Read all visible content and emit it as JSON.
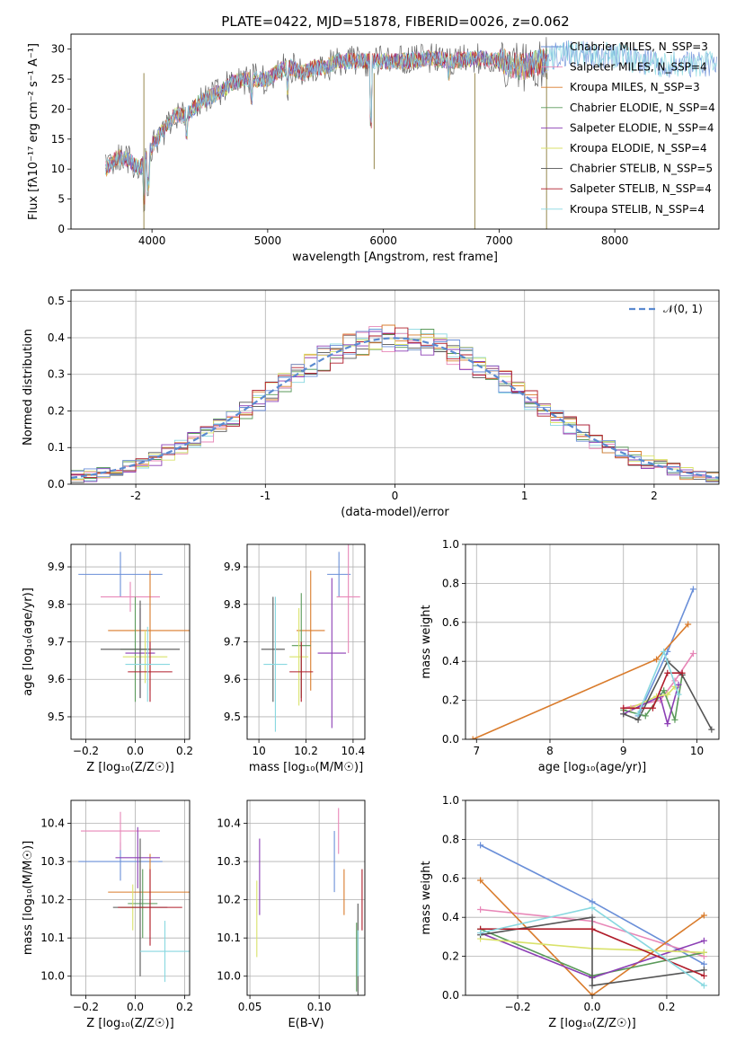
{
  "title": "PLATE=0422, MJD=51878, FIBERID=0026, z=0.062",
  "colors": [
    "#6a8fd8",
    "#e887b8",
    "#d97b2b",
    "#5a9a5a",
    "#8c3fb5",
    "#d9e26a",
    "#555555",
    "#b01c2a",
    "#88d8e0"
  ],
  "chart_data": [
    {
      "type": "line",
      "name": "spectrum",
      "xlabel": "wavelength [Angstrom, rest frame]",
      "ylabel": "Flux [fλ10⁻¹⁷ erg cm⁻² s⁻¹ A⁻¹]",
      "xlim": [
        3300,
        8900
      ],
      "ylim": [
        0,
        32.5
      ],
      "xticks": [
        4000,
        5000,
        6000,
        7000,
        8000
      ],
      "yticks": [
        0,
        5,
        10,
        15,
        20,
        25,
        30
      ],
      "grid": false,
      "legend_position": "right",
      "series": [
        {
          "name": "Chabrier MILES, N_SSP=3"
        },
        {
          "name": "Salpeter MILES, N_SSP=4"
        },
        {
          "name": "Kroupa MILES, N_SSP=3"
        },
        {
          "name": "Chabrier ELODIE, N_SSP=4"
        },
        {
          "name": "Salpeter ELODIE, N_SSP=4"
        },
        {
          "name": "Kroupa ELODIE, N_SSP=4"
        },
        {
          "name": "Chabrier STELIB, N_SSP=5"
        },
        {
          "name": "Salpeter STELIB, N_SSP=4"
        },
        {
          "name": "Kroupa STELIB, N_SSP=4"
        }
      ],
      "continuum": {
        "x": [
          3600,
          3700,
          3800,
          3900,
          4000,
          4100,
          4200,
          4300,
          4400,
          4500,
          4600,
          4700,
          4800,
          4900,
          5000,
          5100,
          5200,
          5300,
          5400,
          5500,
          5600,
          5800,
          6000,
          6200,
          6400,
          6600,
          6800,
          7000,
          7200,
          7400,
          7500,
          7600,
          7800,
          8000,
          8200,
          8400,
          8600,
          8800
        ],
        "y": [
          10,
          12,
          11.5,
          10,
          14,
          16.5,
          19,
          19,
          21,
          22,
          23,
          24.5,
          25,
          25,
          25,
          26.5,
          27,
          26,
          27,
          27,
          28,
          28,
          28,
          28,
          28.5,
          28,
          28.5,
          28,
          27,
          28,
          29,
          29.5,
          29,
          29,
          28,
          27.5,
          27.5,
          27.5
        ]
      }
    },
    {
      "type": "step",
      "name": "residual-histogram",
      "xlabel": "(data-model)/error",
      "ylabel": "Normed distribution",
      "xlim": [
        -2.5,
        2.5
      ],
      "ylim": [
        0,
        0.53
      ],
      "xticks": [
        -2,
        -1,
        0,
        1,
        2
      ],
      "yticks": [
        0.0,
        0.1,
        0.2,
        0.3,
        0.4,
        0.5
      ],
      "grid": true,
      "legend_position": "top-right",
      "gaussian_label": "𝒩(0, 1)",
      "bin_width": 0.1
    },
    {
      "type": "errorbar",
      "name": "age-vs-Z",
      "xlabel": "Z [log₁₀(Z/Z☉)]",
      "ylabel": "age  [log₁₀(age/yr)]",
      "xlim": [
        -0.26,
        0.22
      ],
      "ylim": [
        9.44,
        9.96
      ],
      "xticks": [
        -0.2,
        0.0,
        0.2
      ],
      "xticklabels": [
        "−0.2",
        "0.0",
        "0.2"
      ],
      "yticks": [
        9.5,
        9.6,
        9.7,
        9.8,
        9.9
      ],
      "grid": true,
      "points": [
        {
          "x": -0.06,
          "xerr": 0.17,
          "y": 9.88,
          "yerr": 0.06
        },
        {
          "x": -0.02,
          "xerr": 0.12,
          "y": 9.82,
          "yerr": 0.04
        },
        {
          "x": 0.06,
          "xerr": 0.17,
          "y": 9.73,
          "yerr": 0.16
        },
        {
          "x": 0.0,
          "xerr": 0.06,
          "y": 9.68,
          "yerr": 0.14
        },
        {
          "x": 0.02,
          "xerr": 0.06,
          "y": 9.67,
          "yerr": 0.12
        },
        {
          "x": 0.04,
          "xerr": 0.09,
          "y": 9.66,
          "yerr": 0.07
        },
        {
          "x": 0.02,
          "xerr": 0.16,
          "y": 9.68,
          "yerr": 0.13
        },
        {
          "x": 0.06,
          "xerr": 0.09,
          "y": 9.62,
          "yerr": 0.08
        },
        {
          "x": 0.05,
          "xerr": 0.09,
          "y": 9.64,
          "yerr": 0.1
        }
      ]
    },
    {
      "type": "errorbar",
      "name": "age-vs-mass",
      "xlabel": "mass [log₁₀(M/M☉)]",
      "ylabel": "",
      "xlim": [
        9.95,
        10.45
      ],
      "ylim": [
        9.44,
        9.96
      ],
      "xticks": [
        10.0,
        10.2,
        10.4
      ],
      "yticks": [
        9.5,
        9.6,
        9.7,
        9.8,
        9.9
      ],
      "grid": true,
      "points": [
        {
          "x": 10.34,
          "xerr": 0.05,
          "y": 9.88,
          "yerr": 0.06
        },
        {
          "x": 10.38,
          "xerr": 0.05,
          "y": 9.82,
          "yerr": 0.15
        },
        {
          "x": 10.22,
          "xerr": 0.06,
          "y": 9.73,
          "yerr": 0.16
        },
        {
          "x": 10.18,
          "xerr": 0.04,
          "y": 9.69,
          "yerr": 0.14
        },
        {
          "x": 10.31,
          "xerr": 0.06,
          "y": 9.67,
          "yerr": 0.2
        },
        {
          "x": 10.17,
          "xerr": 0.04,
          "y": 9.66,
          "yerr": 0.13
        },
        {
          "x": 10.06,
          "xerr": 0.05,
          "y": 9.68,
          "yerr": 0.14
        },
        {
          "x": 10.18,
          "xerr": 0.05,
          "y": 9.62,
          "yerr": 0.08
        },
        {
          "x": 10.07,
          "xerr": 0.05,
          "y": 9.64,
          "yerr": 0.18
        }
      ]
    },
    {
      "type": "line",
      "name": "mass-weight-vs-age",
      "xlabel": "age  [log₁₀(age/yr)]",
      "ylabel": "mass weight",
      "xlim": [
        6.85,
        10.3
      ],
      "ylim": [
        0,
        1
      ],
      "xticks": [
        7,
        8,
        9,
        10
      ],
      "yticks": [
        0.0,
        0.2,
        0.4,
        0.6,
        0.8,
        1.0
      ],
      "grid": true,
      "series": [
        {
          "x": [
            9.2,
            9.6,
            9.95
          ],
          "y": [
            0.12,
            0.45,
            0.77
          ]
        },
        {
          "x": [
            9.0,
            9.5,
            9.7,
            9.95
          ],
          "y": [
            0.16,
            0.2,
            0.3,
            0.44
          ]
        },
        {
          "x": [
            6.95,
            9.45,
            9.88
          ],
          "y": [
            0.0,
            0.41,
            0.59
          ]
        },
        {
          "x": [
            9.0,
            9.3,
            9.55,
            9.7,
            9.8
          ],
          "y": [
            0.15,
            0.12,
            0.25,
            0.1,
            0.33
          ]
        },
        {
          "x": [
            9.0,
            9.5,
            9.6,
            9.75
          ],
          "y": [
            0.13,
            0.22,
            0.08,
            0.28
          ]
        },
        {
          "x": [
            9.1,
            9.45,
            9.6,
            9.7
          ],
          "y": [
            0.16,
            0.22,
            0.23,
            0.27
          ]
        },
        {
          "x": [
            9.0,
            9.2,
            9.6,
            9.8,
            10.2
          ],
          "y": [
            0.13,
            0.1,
            0.4,
            0.33,
            0.05
          ]
        },
        {
          "x": [
            9.0,
            9.4,
            9.6,
            9.8
          ],
          "y": [
            0.16,
            0.16,
            0.34,
            0.34
          ]
        },
        {
          "x": [
            9.2,
            9.55,
            9.75
          ],
          "y": [
            0.13,
            0.45,
            0.23
          ]
        }
      ]
    },
    {
      "type": "errorbar",
      "name": "mass-vs-Z",
      "xlabel": "Z [log₁₀(Z/Z☉)]",
      "ylabel": "mass [log₁₀(M/M☉)]",
      "xlim": [
        -0.26,
        0.22
      ],
      "ylim": [
        9.95,
        10.46
      ],
      "xticks": [
        -0.2,
        0.0,
        0.2
      ],
      "xticklabels": [
        "−0.2",
        "0.0",
        "0.2"
      ],
      "yticks": [
        10.0,
        10.1,
        10.2,
        10.3,
        10.4
      ],
      "grid": true,
      "points": [
        {
          "x": -0.06,
          "xerr": 0.17,
          "y": 10.3,
          "yerr": 0.05
        },
        {
          "x": -0.06,
          "xerr": 0.16,
          "y": 10.38,
          "yerr": 0.05
        },
        {
          "x": 0.06,
          "xerr": 0.17,
          "y": 10.22,
          "yerr": 0.1
        },
        {
          "x": 0.03,
          "xerr": 0.06,
          "y": 10.19,
          "yerr": 0.09
        },
        {
          "x": 0.01,
          "xerr": 0.09,
          "y": 10.31,
          "yerr": 0.08
        },
        {
          "x": -0.01,
          "xerr": 0.05,
          "y": 10.18,
          "yerr": 0.06
        },
        {
          "x": 0.02,
          "xerr": 0.11,
          "y": 10.18,
          "yerr": 0.18
        },
        {
          "x": 0.06,
          "xerr": 0.13,
          "y": 10.18,
          "yerr": 0.1
        },
        {
          "x": 0.12,
          "xerr": 0.1,
          "y": 10.065,
          "yerr": 0.08
        }
      ]
    },
    {
      "type": "errorbar",
      "name": "mass-vs-ebv",
      "xlabel": "E(B-V)",
      "ylabel": "",
      "xlim": [
        0.048,
        0.133
      ],
      "ylim": [
        9.95,
        10.46
      ],
      "xticks": [
        0.05,
        0.1
      ],
      "xticklabels": [
        "0.05",
        "0.10"
      ],
      "yticks": [
        10.0,
        10.1,
        10.2,
        10.3,
        10.4
      ],
      "grid": true,
      "points": [
        {
          "x": 0.111,
          "xerr": 0,
          "y": 10.3,
          "yerr": 0.08
        },
        {
          "x": 0.114,
          "xerr": 0,
          "y": 10.38,
          "yerr": 0.06
        },
        {
          "x": 0.118,
          "xerr": 0,
          "y": 10.22,
          "yerr": 0.06
        },
        {
          "x": 0.127,
          "xerr": 0,
          "y": 10.05,
          "yerr": 0.09
        },
        {
          "x": 0.057,
          "xerr": 0,
          "y": 10.26,
          "yerr": 0.1
        },
        {
          "x": 0.055,
          "xerr": 0,
          "y": 10.15,
          "yerr": 0.1
        },
        {
          "x": 0.128,
          "xerr": 0,
          "y": 10.07,
          "yerr": 0.12
        },
        {
          "x": 0.131,
          "xerr": 0,
          "y": 10.2,
          "yerr": 0.08
        },
        {
          "x": 0.128,
          "xerr": 0,
          "y": 10.06,
          "yerr": 0.06
        }
      ]
    },
    {
      "type": "line",
      "name": "mass-weight-vs-Z",
      "xlabel": "Z [log₁₀(Z/Z☉)]",
      "ylabel": "mass weight",
      "xlim": [
        -0.34,
        0.34
      ],
      "ylim": [
        0,
        1
      ],
      "xticks": [
        -0.2,
        0.0,
        0.2
      ],
      "xticklabels": [
        "−0.2",
        "0.0",
        "0.2"
      ],
      "yticks": [
        0.0,
        0.2,
        0.4,
        0.6,
        0.8,
        1.0
      ],
      "grid": true,
      "series": [
        {
          "x": [
            -0.3,
            0.0,
            0.3
          ],
          "y": [
            0.77,
            0.48,
            0.16
          ]
        },
        {
          "x": [
            -0.3,
            0.0,
            0.3
          ],
          "y": [
            0.44,
            0.38,
            0.2
          ]
        },
        {
          "x": [
            -0.3,
            0.0,
            0.3
          ],
          "y": [
            0.59,
            0.0,
            0.41
          ]
        },
        {
          "x": [
            -0.3,
            0.0,
            0.3
          ],
          "y": [
            0.34,
            0.1,
            0.22
          ]
        },
        {
          "x": [
            -0.3,
            0.0,
            0.3
          ],
          "y": [
            0.32,
            0.09,
            0.28
          ]
        },
        {
          "x": [
            -0.3,
            0.0,
            0.3
          ],
          "y": [
            0.29,
            0.24,
            0.22
          ]
        },
        {
          "x": [
            -0.3,
            0.0,
            0.0,
            0.3
          ],
          "y": [
            0.31,
            0.4,
            0.05,
            0.13
          ]
        },
        {
          "x": [
            -0.3,
            0.0,
            0.3
          ],
          "y": [
            0.34,
            0.34,
            0.1
          ]
        },
        {
          "x": [
            -0.3,
            0.0,
            0.3
          ],
          "y": [
            0.32,
            0.45,
            0.05
          ]
        }
      ]
    }
  ]
}
